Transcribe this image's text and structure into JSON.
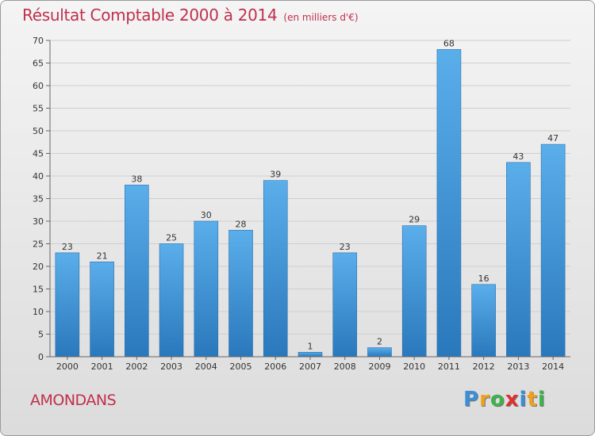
{
  "chart_data": {
    "type": "bar",
    "title": "Résultat Comptable 2000 à 2014",
    "subtitle": "(en milliers d'€)",
    "categories": [
      "2000",
      "2001",
      "2002",
      "2003",
      "2004",
      "2005",
      "2006",
      "2007",
      "2008",
      "2009",
      "2010",
      "2011",
      "2012",
      "2013",
      "2014"
    ],
    "values": [
      23,
      21,
      38,
      25,
      30,
      28,
      39,
      1,
      23,
      2,
      29,
      68,
      16,
      43,
      47
    ],
    "ylim": [
      0,
      70
    ],
    "yticks": [
      0,
      5,
      10,
      15,
      20,
      25,
      30,
      35,
      40,
      45,
      50,
      55,
      60,
      65,
      70
    ],
    "grid": true,
    "xlabel": "",
    "ylabel": ""
  },
  "footer": {
    "place": "AMONDANS",
    "brand_letters": [
      "P",
      "r",
      "o",
      "x",
      "i",
      "t",
      "i"
    ],
    "brand_colors": [
      "#3a8fd8",
      "#f0a020",
      "#3ab54a",
      "#e03030",
      "#3a8fd8",
      "#f0a020",
      "#3ab54a"
    ]
  },
  "colors": {
    "bar_light": "#5aaeea",
    "bar_dark": "#2a78bc",
    "grid": "#cfcfcf",
    "title": "#c0304d"
  }
}
